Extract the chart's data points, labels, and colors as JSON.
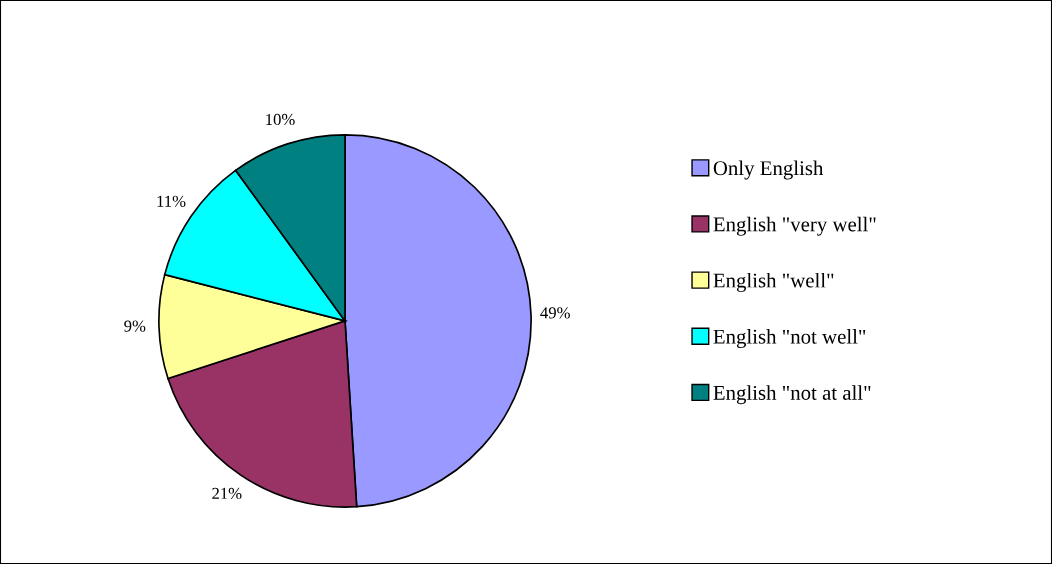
{
  "chart_data": {
    "type": "pie",
    "categories": [
      "Only English",
      "English \"very well\"",
      "English \"well\"",
      "English \"not well\"",
      "English \"not at all\""
    ],
    "values": [
      49,
      21,
      9,
      11,
      10
    ],
    "value_labels": [
      "49%",
      "21%",
      "9%",
      "11%",
      "10%"
    ],
    "colors": [
      "#9999ff",
      "#993366",
      "#ffff99",
      "#00ffff",
      "#008080"
    ],
    "legend": "right"
  }
}
